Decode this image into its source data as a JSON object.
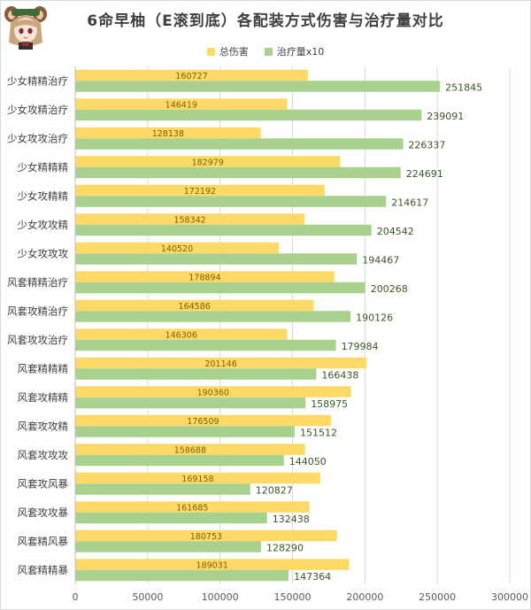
{
  "chart_data": {
    "type": "bar",
    "orientation": "horizontal",
    "title": "6命早柚（E滚到底）各配装方式伤害与治疗量对比",
    "categories": [
      "少女精精治疗",
      "少女攻精治疗",
      "少女攻攻治疗",
      "少女精精精",
      "少女攻精精",
      "少女攻攻精",
      "少女攻攻攻",
      "风套精精治疗",
      "风套攻精治疗",
      "风套攻攻治疗",
      "风套精精精",
      "风套攻精精",
      "风套攻攻精",
      "风套攻攻攻",
      "风套攻风暴",
      "风套攻攻暴",
      "风套精风暴",
      "风套精精暴"
    ],
    "series": [
      {
        "name": "总伤害",
        "color": "#ffd966",
        "values": [
          160727,
          146419,
          128138,
          182979,
          172192,
          158342,
          140520,
          178894,
          164586,
          146306,
          201146,
          190360,
          176509,
          158688,
          169158,
          161685,
          180753,
          189031
        ]
      },
      {
        "name": "治疗量x10",
        "color": "#a9d18e",
        "values": [
          251845,
          239091,
          226337,
          224691,
          214617,
          204542,
          194467,
          200268,
          190126,
          179984,
          166438,
          158975,
          151512,
          144050,
          120827,
          132438,
          128290,
          147364
        ]
      }
    ],
    "xlim": [
      0,
      300000
    ],
    "xticks": [
      "0",
      "50000",
      "100000",
      "150000",
      "200000",
      "250000",
      "300000"
    ],
    "legend_position": "top",
    "grid": true
  },
  "colors": {
    "damage_label": "#7f5f00",
    "heal_label": "#385723",
    "gridline": "#d9d9d9",
    "axis_text": "#595959"
  },
  "avatar": {
    "icon": "sayu-portrait-icon"
  }
}
